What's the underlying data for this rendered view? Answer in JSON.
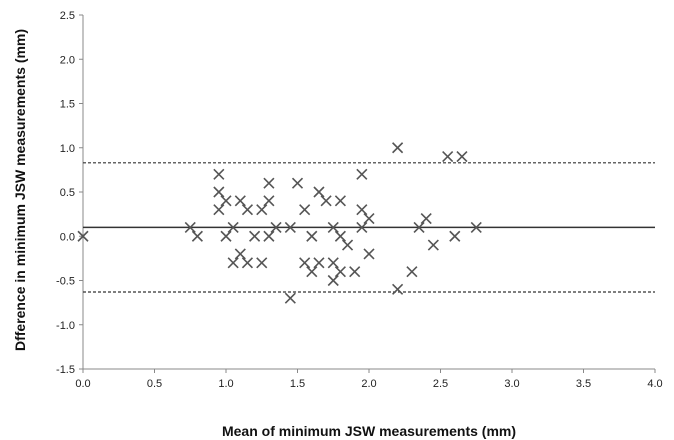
{
  "chart_data": {
    "type": "scatter",
    "title": "",
    "xlabel": "Mean of minimum JSW measurements (mm)",
    "ylabel": "Dfference in minimum JSW measurements (mm)",
    "xlim": [
      0,
      4
    ],
    "ylim": [
      -1.5,
      2.5
    ],
    "x_ticks": [
      "0.0",
      "0.5",
      "1.0",
      "1.5",
      "2.0",
      "2.5",
      "3.0",
      "3.5",
      "4.0"
    ],
    "y_ticks": [
      "2.5",
      "2.0",
      "1.5",
      "1.0",
      "0.5",
      "0.0",
      "-0.5",
      "-1.0",
      "-1.5"
    ],
    "grid": false,
    "marker": "x",
    "colors": {
      "marker": "#555555",
      "lines": "#333333"
    },
    "reference_lines": [
      {
        "kind": "mean",
        "y": 0.1,
        "style": "solid"
      },
      {
        "kind": "upper-limit",
        "y": 0.83,
        "style": "dashed"
      },
      {
        "kind": "lower-limit",
        "y": -0.63,
        "style": "dashed"
      }
    ],
    "series": [
      {
        "points": [
          [
            0.0,
            0.0
          ],
          [
            0.75,
            0.1
          ],
          [
            0.8,
            0.0
          ],
          [
            0.95,
            0.7
          ],
          [
            0.95,
            0.5
          ],
          [
            0.95,
            0.3
          ],
          [
            1.0,
            0.4
          ],
          [
            1.0,
            0.0
          ],
          [
            1.05,
            0.1
          ],
          [
            1.05,
            -0.3
          ],
          [
            1.1,
            0.4
          ],
          [
            1.1,
            -0.2
          ],
          [
            1.15,
            0.3
          ],
          [
            1.15,
            -0.3
          ],
          [
            1.2,
            0.0
          ],
          [
            1.25,
            0.3
          ],
          [
            1.25,
            -0.3
          ],
          [
            1.3,
            0.6
          ],
          [
            1.3,
            0.4
          ],
          [
            1.3,
            0.0
          ],
          [
            1.35,
            0.1
          ],
          [
            1.45,
            0.1
          ],
          [
            1.45,
            -0.7
          ],
          [
            1.5,
            0.6
          ],
          [
            1.55,
            0.3
          ],
          [
            1.55,
            -0.3
          ],
          [
            1.6,
            0.0
          ],
          [
            1.6,
            -0.4
          ],
          [
            1.65,
            0.5
          ],
          [
            1.65,
            -0.3
          ],
          [
            1.7,
            0.4
          ],
          [
            1.75,
            0.1
          ],
          [
            1.75,
            -0.3
          ],
          [
            1.75,
            -0.5
          ],
          [
            1.8,
            0.4
          ],
          [
            1.8,
            0.0
          ],
          [
            1.8,
            -0.4
          ],
          [
            1.85,
            -0.1
          ],
          [
            1.9,
            -0.4
          ],
          [
            1.95,
            0.7
          ],
          [
            1.95,
            0.3
          ],
          [
            1.95,
            0.1
          ],
          [
            2.0,
            0.2
          ],
          [
            2.0,
            -0.2
          ],
          [
            2.2,
            1.0
          ],
          [
            2.2,
            -0.6
          ],
          [
            2.3,
            -0.4
          ],
          [
            2.35,
            0.1
          ],
          [
            2.4,
            0.2
          ],
          [
            2.45,
            -0.1
          ],
          [
            2.55,
            0.9
          ],
          [
            2.6,
            0.0
          ],
          [
            2.65,
            0.9
          ],
          [
            2.75,
            0.1
          ]
        ]
      }
    ]
  }
}
